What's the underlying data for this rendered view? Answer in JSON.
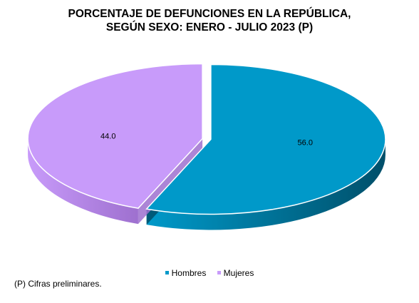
{
  "chart_data": {
    "type": "pie",
    "title_line1": "PORCENTAJE DE DEFUNCIONES EN LA REPÚBLICA,",
    "title_line2": "SEGÚN SEXO: ENERO - JULIO 2023 (P)",
    "categories": [
      "Hombres",
      "Mujeres"
    ],
    "values": [
      56.0,
      44.0
    ],
    "value_labels": [
      "56.0",
      "44.0"
    ],
    "colors": [
      "#0099C9",
      "#C89BFA"
    ],
    "side_colors": [
      "#004F6A",
      "#9E70CF"
    ],
    "legend_position": "bottom",
    "exploded": true,
    "three_d": true
  },
  "footnote": "(P) Cifras  preliminares."
}
